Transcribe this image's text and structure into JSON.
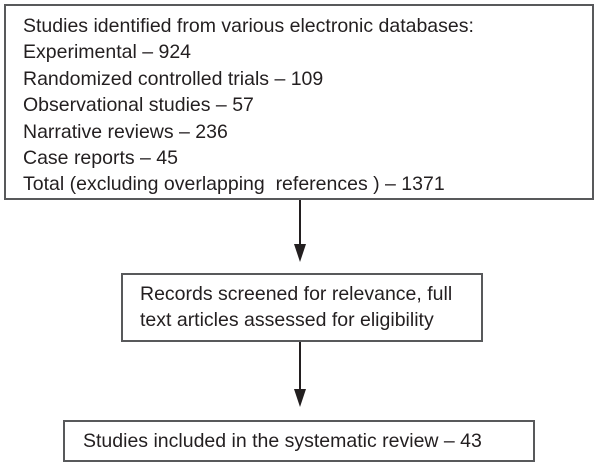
{
  "page": {
    "background_color": "#ffffff",
    "box_border_color": "#58595b",
    "text_color": "#231f20",
    "arrow_color": "#231f20"
  },
  "flowchart": {
    "identification_box": {
      "heading": "Studies identified from various electronic databases:",
      "items": [
        {
          "label": "Experimental",
          "count": 924,
          "text": "Experimental – 924"
        },
        {
          "label": "Randomized controlled trials",
          "count": 109,
          "text": "Randomized controlled trials – 109"
        },
        {
          "label": "Observational studies",
          "count": 57,
          "text": "Observational studies – 57"
        },
        {
          "label": "Narrative reviews",
          "count": 236,
          "text": "Narrative reviews – 236"
        },
        {
          "label": "Case reports",
          "count": 45,
          "text": "Case reports – 45"
        },
        {
          "label": "Total (excluding overlapping references)",
          "count": 1371,
          "text": "Total (excluding overlapping  references ) – 1371"
        }
      ]
    },
    "screening_box": {
      "lines": [
        "Records screened for relevance, full",
        "text articles assessed for eligibility"
      ],
      "full_text": "Records screened for relevance, full text articles assessed for eligibility"
    },
    "included_box": {
      "label": "Studies included in the systematic review",
      "count": 43,
      "text": "Studies included in the systematic review – 43"
    }
  }
}
